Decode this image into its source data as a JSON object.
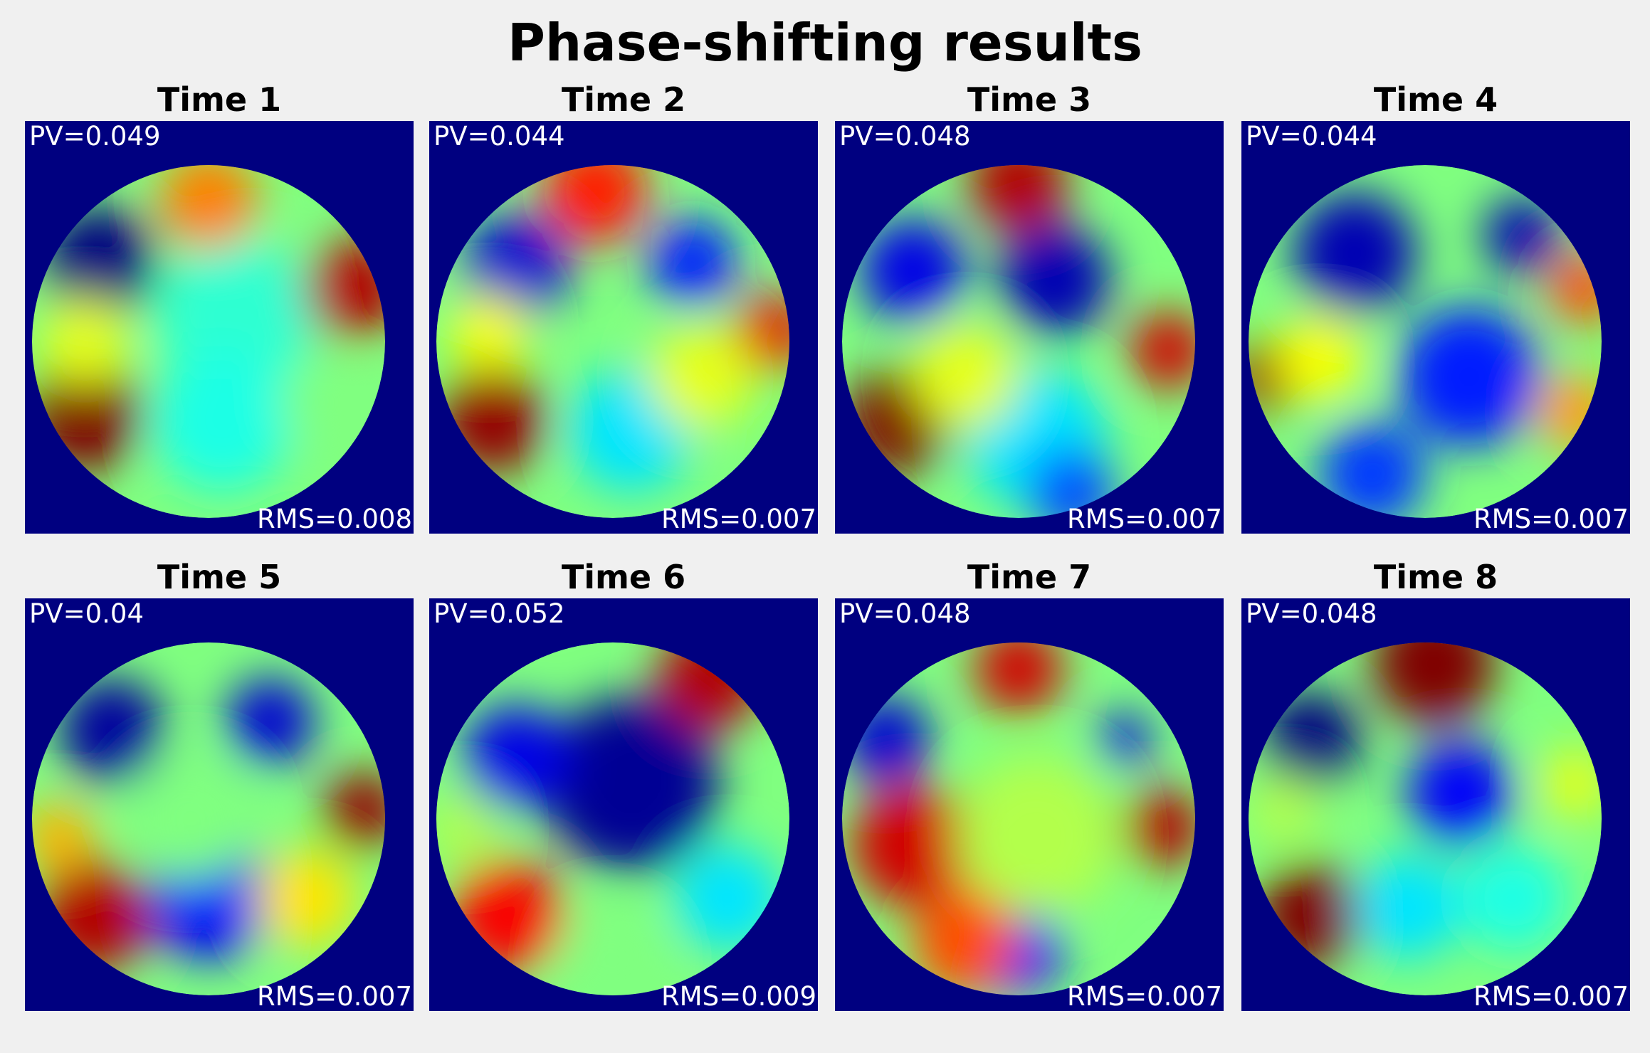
{
  "chart_data": {
    "type": "heatmap",
    "title": "Phase-shifting results",
    "colormap": "jet",
    "background_color": "#000080",
    "panels": [
      {
        "title": "Time 1",
        "pv_label": "PV=0.049",
        "rms_label": "RMS=0.008",
        "pv": 0.049,
        "rms": 0.008,
        "blobs": [
          [
            -0.62,
            -0.45,
            0.32,
            0.0
          ],
          [
            0.15,
            -0.15,
            0.45,
            0.42
          ],
          [
            0.08,
            0.45,
            0.4,
            0.4
          ],
          [
            -0.7,
            0.42,
            0.32,
            1.0
          ],
          [
            0.82,
            -0.3,
            0.28,
            0.95
          ],
          [
            -0.7,
            0.0,
            0.25,
            0.6
          ],
          [
            0.0,
            -0.8,
            0.28,
            0.75
          ],
          [
            0.65,
            0.35,
            0.25,
            0.5
          ]
        ]
      },
      {
        "title": "Time 2",
        "pv_label": "PV=0.044",
        "rms_label": "RMS=0.007",
        "pv": 0.044,
        "rms": 0.007,
        "blobs": [
          [
            -0.55,
            -0.42,
            0.3,
            0.08
          ],
          [
            0.45,
            -0.45,
            0.25,
            0.15
          ],
          [
            0.1,
            0.5,
            0.35,
            0.35
          ],
          [
            -0.68,
            0.45,
            0.3,
            0.98
          ],
          [
            0.9,
            -0.05,
            0.22,
            0.9
          ],
          [
            -0.1,
            -0.85,
            0.3,
            0.85
          ],
          [
            0.5,
            0.2,
            0.3,
            0.6
          ],
          [
            -0.7,
            -0.05,
            0.22,
            0.62
          ]
        ]
      },
      {
        "title": "Time 3",
        "pv_label": "PV=0.048",
        "rms_label": "RMS=0.007",
        "pv": 0.048,
        "rms": 0.007,
        "blobs": [
          [
            -0.6,
            -0.4,
            0.3,
            0.1
          ],
          [
            0.2,
            -0.35,
            0.32,
            0.05
          ],
          [
            0.1,
            0.55,
            0.4,
            0.35
          ],
          [
            -0.68,
            0.45,
            0.3,
            1.0
          ],
          [
            0.85,
            0.05,
            0.22,
            0.92
          ],
          [
            0.0,
            -0.9,
            0.28,
            0.95
          ],
          [
            0.3,
            0.85,
            0.25,
            0.2
          ],
          [
            -0.3,
            0.2,
            0.3,
            0.6
          ]
        ]
      },
      {
        "title": "Time 4",
        "pv_label": "PV=0.044",
        "rms_label": "RMS=0.007",
        "pv": 0.044,
        "rms": 0.007,
        "blobs": [
          [
            -0.4,
            -0.5,
            0.35,
            0.05
          ],
          [
            0.55,
            -0.6,
            0.22,
            0.05
          ],
          [
            0.25,
            0.2,
            0.4,
            0.15
          ],
          [
            -0.3,
            0.75,
            0.3,
            0.18
          ],
          [
            -0.9,
            0.2,
            0.2,
            0.98
          ],
          [
            0.9,
            -0.3,
            0.2,
            0.8
          ],
          [
            0.85,
            0.4,
            0.22,
            0.72
          ],
          [
            -0.6,
            0.1,
            0.25,
            0.62
          ]
        ]
      },
      {
        "title": "Time 5",
        "pv_label": "PV=0.04",
        "rms_label": "RMS=0.007",
        "pv": 0.04,
        "rms": 0.007,
        "blobs": [
          [
            -0.55,
            -0.5,
            0.3,
            0.03
          ],
          [
            0.35,
            -0.55,
            0.25,
            0.08
          ],
          [
            0.0,
            0.45,
            0.35,
            0.12
          ],
          [
            -0.65,
            0.55,
            0.32,
            0.95
          ],
          [
            0.88,
            -0.05,
            0.22,
            0.98
          ],
          [
            -0.1,
            0.0,
            0.35,
            0.5
          ],
          [
            0.55,
            0.45,
            0.28,
            0.65
          ],
          [
            -0.85,
            0.1,
            0.2,
            0.7
          ]
        ]
      },
      {
        "title": "Time 6",
        "pv_label": "PV=0.052",
        "rms_label": "RMS=0.009",
        "pv": 0.052,
        "rms": 0.009,
        "blobs": [
          [
            0.1,
            -0.2,
            0.5,
            0.02
          ],
          [
            -0.55,
            -0.35,
            0.3,
            0.1
          ],
          [
            0.55,
            -0.8,
            0.3,
            0.95
          ],
          [
            -0.6,
            0.55,
            0.32,
            0.88
          ],
          [
            0.65,
            0.45,
            0.3,
            0.35
          ],
          [
            -0.85,
            0.05,
            0.2,
            0.55
          ],
          [
            0.0,
            0.8,
            0.3,
            0.5
          ]
        ]
      },
      {
        "title": "Time 7",
        "pv_label": "PV=0.048",
        "rms_label": "RMS=0.007",
        "pv": 0.048,
        "rms": 0.007,
        "blobs": [
          [
            -0.75,
            -0.45,
            0.25,
            0.08
          ],
          [
            0.6,
            -0.45,
            0.15,
            0.1
          ],
          [
            -0.6,
            0.15,
            0.35,
            0.92
          ],
          [
            0.0,
            -0.85,
            0.25,
            0.92
          ],
          [
            0.82,
            0.05,
            0.22,
            0.95
          ],
          [
            0.0,
            0.75,
            0.25,
            0.15
          ],
          [
            0.1,
            0.1,
            0.45,
            0.55
          ],
          [
            -0.3,
            0.7,
            0.3,
            0.8
          ]
        ]
      },
      {
        "title": "Time 8",
        "pv_label": "PV=0.048",
        "rms_label": "RMS=0.007",
        "pv": 0.048,
        "rms": 0.007,
        "blobs": [
          [
            -0.65,
            -0.45,
            0.28,
            0.0
          ],
          [
            0.2,
            -0.15,
            0.3,
            0.12
          ],
          [
            0.05,
            -0.88,
            0.35,
            1.0
          ],
          [
            -0.65,
            0.55,
            0.3,
            1.0
          ],
          [
            0.5,
            0.45,
            0.3,
            0.4
          ],
          [
            -0.1,
            0.5,
            0.3,
            0.35
          ],
          [
            0.85,
            -0.2,
            0.2,
            0.6
          ],
          [
            -0.8,
            -0.05,
            0.2,
            0.55
          ]
        ]
      }
    ]
  }
}
